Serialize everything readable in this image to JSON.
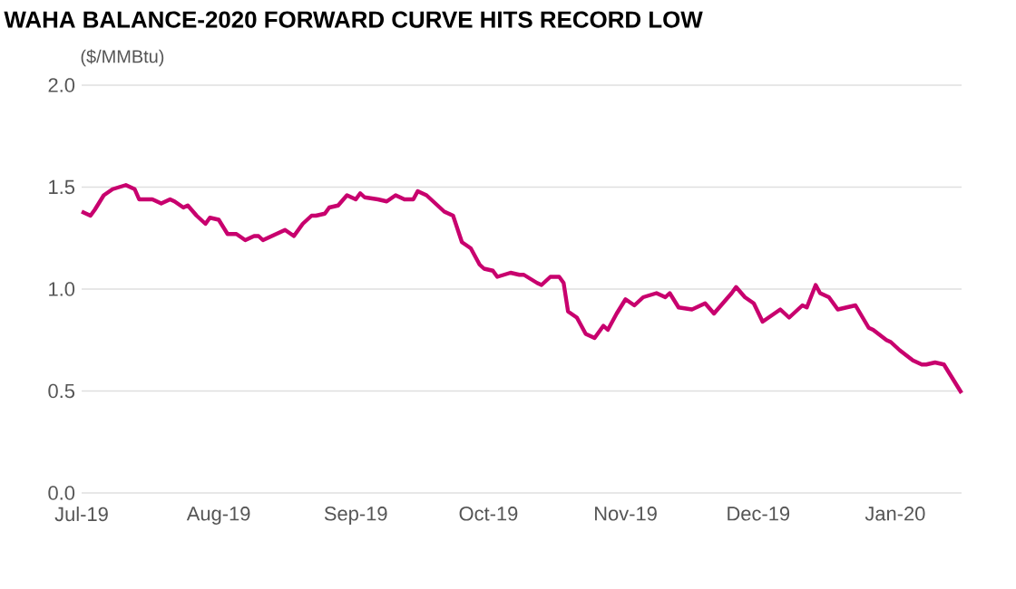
{
  "chart_data": {
    "type": "line",
    "title": "WAHA BALANCE-2020 FORWARD CURVE HITS RECORD LOW",
    "ylabel": "($/MMBtu)",
    "x": [
      "2019-07-01",
      "2019-07-03",
      "2019-07-04",
      "2019-07-06",
      "2019-07-08",
      "2019-07-11",
      "2019-07-13",
      "2019-07-14",
      "2019-07-17",
      "2019-07-19",
      "2019-07-21",
      "2019-07-22",
      "2019-07-24",
      "2019-07-25",
      "2019-07-27",
      "2019-07-29",
      "2019-07-30",
      "2019-08-01",
      "2019-08-03",
      "2019-08-05",
      "2019-08-07",
      "2019-08-09",
      "2019-08-10",
      "2019-08-11",
      "2019-08-13",
      "2019-08-15",
      "2019-08-16",
      "2019-08-18",
      "2019-08-20",
      "2019-08-22",
      "2019-08-23",
      "2019-08-25",
      "2019-08-26",
      "2019-08-28",
      "2019-08-30",
      "2019-09-01",
      "2019-09-02",
      "2019-09-03",
      "2019-09-06",
      "2019-09-08",
      "2019-09-10",
      "2019-09-12",
      "2019-09-14",
      "2019-09-15",
      "2019-09-17",
      "2019-09-20",
      "2019-09-21",
      "2019-09-23",
      "2019-09-25",
      "2019-09-27",
      "2019-09-29",
      "2019-09-30",
      "2019-10-02",
      "2019-10-03",
      "2019-10-06",
      "2019-10-08",
      "2019-10-09",
      "2019-10-12",
      "2019-10-13",
      "2019-10-15",
      "2019-10-17",
      "2019-10-18",
      "2019-10-19",
      "2019-10-21",
      "2019-10-23",
      "2019-10-25",
      "2019-10-27",
      "2019-10-28",
      "2019-10-30",
      "2019-11-01",
      "2019-11-03",
      "2019-11-05",
      "2019-11-08",
      "2019-11-10",
      "2019-11-11",
      "2019-11-13",
      "2019-11-16",
      "2019-11-19",
      "2019-11-21",
      "2019-11-23",
      "2019-11-25",
      "2019-11-26",
      "2019-11-28",
      "2019-11-30",
      "2019-12-02",
      "2019-12-04",
      "2019-12-06",
      "2019-12-08",
      "2019-12-11",
      "2019-12-12",
      "2019-12-14",
      "2019-12-15",
      "2019-12-17",
      "2019-12-19",
      "2019-12-21",
      "2019-12-23",
      "2019-12-26",
      "2019-12-27",
      "2019-12-30",
      "2019-12-31",
      "2020-01-02",
      "2020-01-05",
      "2020-01-07",
      "2020-01-08",
      "2020-01-10",
      "2020-01-12",
      "2020-01-14",
      "2020-01-16"
    ],
    "series": [
      {
        "color": "#c8006e",
        "values": [
          1.38,
          1.36,
          1.39,
          1.46,
          1.49,
          1.51,
          1.49,
          1.44,
          1.44,
          1.42,
          1.44,
          1.43,
          1.4,
          1.41,
          1.36,
          1.32,
          1.35,
          1.34,
          1.27,
          1.27,
          1.24,
          1.26,
          1.26,
          1.24,
          1.26,
          1.28,
          1.29,
          1.26,
          1.32,
          1.36,
          1.36,
          1.37,
          1.4,
          1.41,
          1.46,
          1.44,
          1.47,
          1.45,
          1.44,
          1.43,
          1.46,
          1.44,
          1.44,
          1.48,
          1.46,
          1.4,
          1.38,
          1.36,
          1.23,
          1.2,
          1.12,
          1.1,
          1.09,
          1.06,
          1.08,
          1.07,
          1.07,
          1.03,
          1.02,
          1.06,
          1.06,
          1.03,
          0.89,
          0.86,
          0.78,
          0.76,
          0.82,
          0.8,
          0.88,
          0.95,
          0.92,
          0.96,
          0.98,
          0.96,
          0.98,
          0.91,
          0.9,
          0.93,
          0.88,
          0.93,
          0.98,
          1.01,
          0.96,
          0.93,
          0.84,
          0.87,
          0.9,
          0.86,
          0.92,
          0.91,
          1.02,
          0.98,
          0.96,
          0.9,
          0.91,
          0.92,
          0.81,
          0.8,
          0.75,
          0.74,
          0.7,
          0.65,
          0.63,
          0.63,
          0.64,
          0.63,
          0.56,
          0.49
        ]
      }
    ],
    "xlim": [
      "2019-07-01",
      "2020-01-16"
    ],
    "xticks": [
      {
        "value": "2019-07-01",
        "label": "Jul-19"
      },
      {
        "value": "2019-08-01",
        "label": "Aug-19"
      },
      {
        "value": "2019-09-01",
        "label": "Sep-19"
      },
      {
        "value": "2019-10-01",
        "label": "Oct-19"
      },
      {
        "value": "2019-11-01",
        "label": "Nov-19"
      },
      {
        "value": "2019-12-01",
        "label": "Dec-19"
      },
      {
        "value": "2020-01-01",
        "label": "Jan-20"
      }
    ],
    "ylim": [
      0,
      2
    ],
    "yticks": [
      {
        "value": 0,
        "label": "0.0"
      },
      0.5,
      {
        "value": 1,
        "label": "1.0"
      },
      1.5,
      {
        "value": 2,
        "label": "2.0"
      }
    ],
    "grid": "y",
    "marker": "none",
    "line_style": "solid"
  }
}
